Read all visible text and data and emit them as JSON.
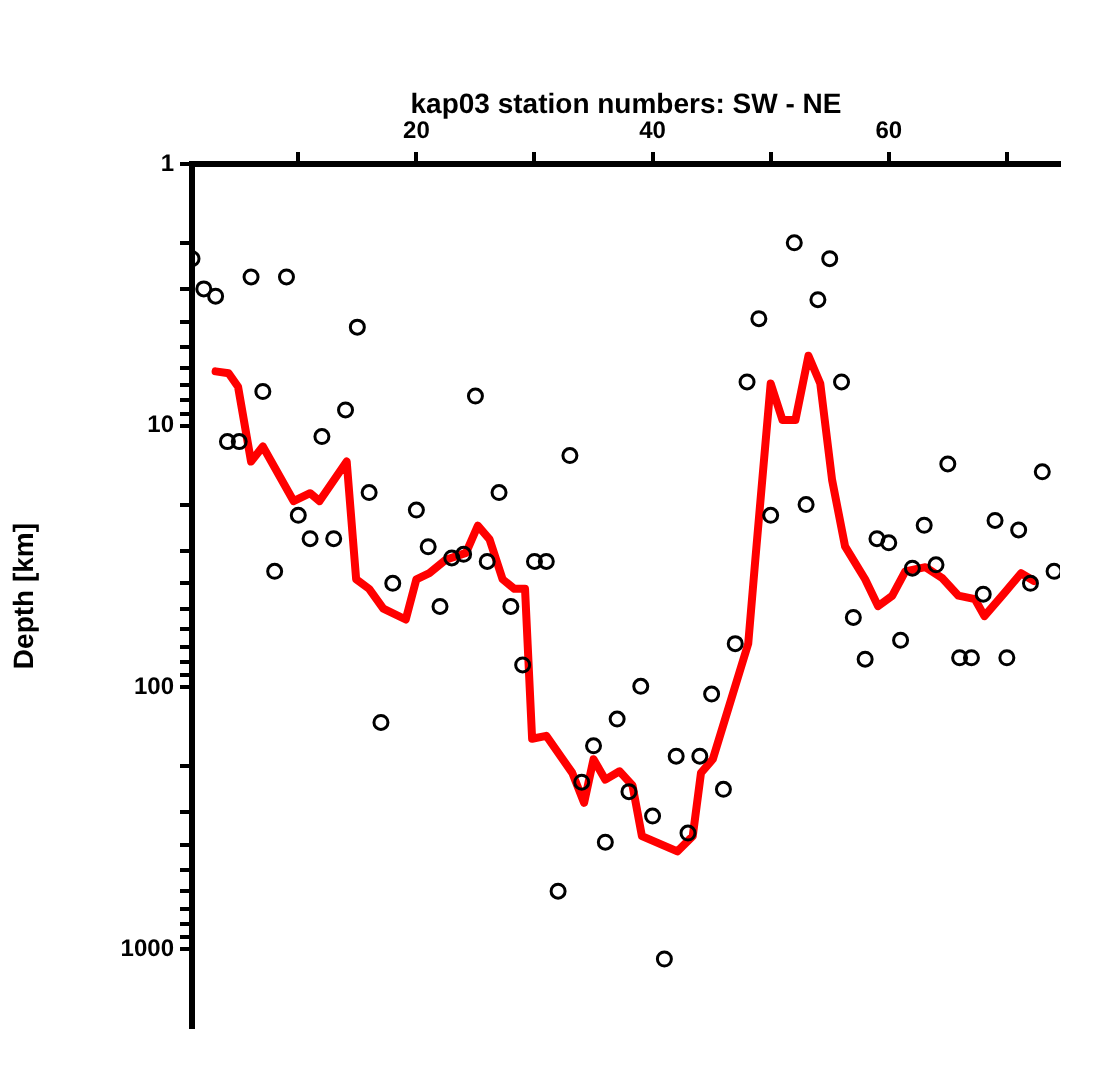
{
  "chart_data": {
    "type": "scatter",
    "xlabel": "kap03 station numbers: SW - NE",
    "ylabel": "Depth [km]",
    "log": "y",
    "grid": false,
    "legend": false,
    "xlim": [
      1,
      74.5
    ],
    "xticks": [
      {
        "value": 10,
        "label": null
      },
      20,
      {
        "value": 30,
        "label": null
      },
      40,
      {
        "value": 50,
        "label": null
      },
      60,
      {
        "value": 70,
        "label": null
      }
    ],
    "ylim": [
      2000,
      1
    ],
    "yticks": [
      1,
      {
        "value": 2,
        "label": null
      },
      {
        "value": 3,
        "label": null
      },
      {
        "value": 4,
        "label": null
      },
      {
        "value": 5,
        "label": null
      },
      {
        "value": 6,
        "label": null
      },
      {
        "value": 7,
        "label": null
      },
      {
        "value": 8,
        "label": null
      },
      {
        "value": 9,
        "label": null
      },
      10,
      {
        "value": 20,
        "label": null
      },
      {
        "value": 30,
        "label": null
      },
      {
        "value": 40,
        "label": null
      },
      {
        "value": 50,
        "label": null
      },
      {
        "value": 60,
        "label": null
      },
      {
        "value": 70,
        "label": null
      },
      {
        "value": 80,
        "label": null
      },
      {
        "value": 90,
        "label": null
      },
      100,
      {
        "value": 200,
        "label": null
      },
      {
        "value": 300,
        "label": null
      },
      {
        "value": 400,
        "label": null
      },
      {
        "value": 500,
        "label": null
      },
      {
        "value": 600,
        "label": null
      },
      {
        "value": 700,
        "label": null
      },
      {
        "value": 800,
        "label": null
      },
      {
        "value": 900,
        "label": null
      },
      1000
    ],
    "series": [
      {
        "type": "scatter",
        "color": "#000000",
        "marker": "circle",
        "x": [
          1,
          2,
          3,
          4,
          5,
          6,
          7,
          8,
          9,
          10,
          11,
          12,
          13,
          14,
          15,
          16,
          17,
          18,
          20,
          21,
          22,
          23,
          24,
          25,
          26,
          27,
          28,
          29,
          30,
          31,
          32,
          33,
          34,
          35,
          36,
          37,
          38,
          39,
          40,
          41,
          42,
          43,
          44,
          45,
          46,
          47,
          48,
          49,
          50,
          52,
          53,
          54,
          55,
          56,
          57,
          58,
          59,
          60,
          61,
          62,
          63,
          64,
          65,
          66,
          67,
          68,
          69,
          70,
          71,
          72,
          73,
          74
        ],
        "values": [
          2.3,
          3.0,
          3.2,
          11.5,
          11.5,
          2.7,
          7.4,
          36,
          2.7,
          22,
          27,
          11,
          27,
          8.7,
          4.2,
          18,
          136,
          40,
          21,
          29,
          49,
          32,
          31,
          7.7,
          33,
          18,
          49,
          82,
          33,
          33,
          600,
          13,
          230,
          167,
          390,
          132,
          250,
          99,
          310,
          1090,
          183,
          360,
          183,
          106,
          245,
          68,
          6.8,
          3.9,
          22,
          2.0,
          20,
          3.3,
          2.3,
          6.8,
          54,
          78,
          27,
          28,
          66,
          35,
          24,
          34,
          14,
          77,
          77,
          44,
          23,
          77,
          25,
          40,
          15,
          36
        ]
      },
      {
        "type": "line",
        "color": "#ff0000",
        "marker": "none",
        "line_style": "solid",
        "x": [
          3,
          4.1,
          4.9,
          6,
          7,
          9.6,
          11,
          11.8,
          14.1,
          14.9,
          16,
          17.2,
          19.1,
          20,
          21.1,
          22.5,
          24.2,
          25.2,
          26.2,
          27.3,
          28.3,
          29.2,
          29.8,
          31,
          33.2,
          34.2,
          35,
          36,
          37.2,
          38.3,
          39.1,
          42.1,
          43.4,
          44.1,
          45.1,
          48.1,
          48.7,
          50,
          51,
          52.1,
          53.2,
          54.2,
          55.2,
          56.3,
          58,
          59.1,
          60.3,
          61.4,
          63.1,
          64.5,
          65.9,
          67.3,
          68.1,
          69.8,
          71.2,
          72.3
        ],
        "values": [
          6.2,
          6.3,
          7.1,
          13.7,
          12,
          19.4,
          18.1,
          19.4,
          13.7,
          38.6,
          42,
          50,
          55,
          38.6,
          36.6,
          32.5,
          30.6,
          24.1,
          27.2,
          38.6,
          42,
          42,
          157,
          153,
          212,
          276,
          188,
          225,
          209,
          237,
          370,
          423,
          370,
          212,
          188,
          68,
          32.5,
          6.9,
          9.5,
          9.5,
          5.4,
          6.9,
          16.1,
          28.9,
          38.6,
          48.9,
          44.6,
          36,
          34.7,
          38.1,
          44.6,
          46,
          53.4,
          43.5,
          36.6,
          39.2
        ]
      }
    ]
  }
}
